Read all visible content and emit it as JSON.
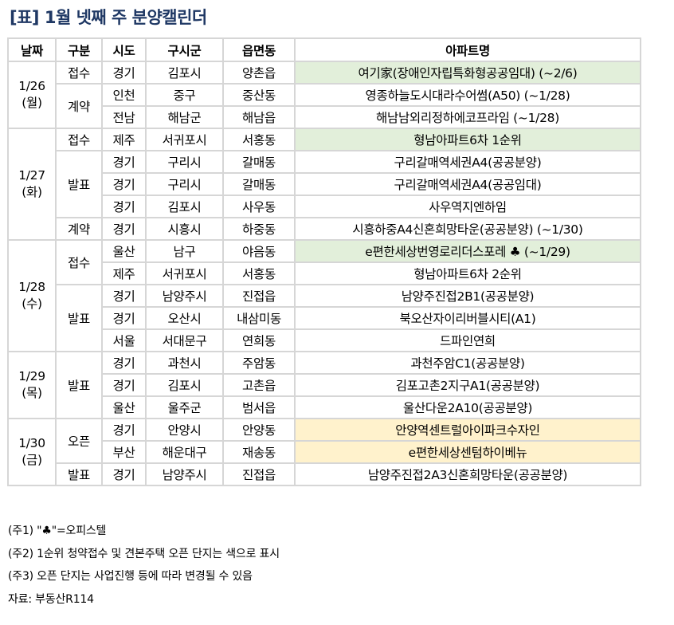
{
  "title": "[표] 1월 넷째 주 분양캘린더",
  "headers": [
    "날짜",
    "구분",
    "시도",
    "구시군",
    "읍면동",
    "아파트명"
  ],
  "colors": {
    "title": "#1f3864",
    "first_rank_highlight": "#e2efda",
    "open_highlight": "#fff2cc",
    "border": "#d6d6d6"
  },
  "days": [
    {
      "date": "1/26",
      "weekday": "(월)",
      "groups": [
        {
          "type": "접수",
          "rows": [
            {
              "sido": "경기",
              "sigungu": "김포시",
              "dong": "양촌읍",
              "name": "여기家(장애인자립특화형공공임대) (~2/6)",
              "highlight": "green"
            }
          ]
        },
        {
          "type": "계약",
          "rows": [
            {
              "sido": "인천",
              "sigungu": "중구",
              "dong": "중산동",
              "name": "영종하늘도시대라수어썸(A50) (~1/28)"
            },
            {
              "sido": "전남",
              "sigungu": "해남군",
              "dong": "해남읍",
              "name": "해남남외리정하에코프라임 (~1/28)"
            }
          ]
        }
      ]
    },
    {
      "date": "1/27",
      "weekday": "(화)",
      "groups": [
        {
          "type": "접수",
          "rows": [
            {
              "sido": "제주",
              "sigungu": "서귀포시",
              "dong": "서홍동",
              "name": "형남아파트6차 1순위",
              "highlight": "green"
            }
          ]
        },
        {
          "type": "발표",
          "rows": [
            {
              "sido": "경기",
              "sigungu": "구리시",
              "dong": "갈매동",
              "name": "구리갈매역세권A4(공공분양)"
            },
            {
              "sido": "경기",
              "sigungu": "구리시",
              "dong": "갈매동",
              "name": "구리갈매역세권A4(공공임대)"
            },
            {
              "sido": "경기",
              "sigungu": "김포시",
              "dong": "사우동",
              "name": "사우역지엔하임"
            }
          ]
        },
        {
          "type": "계약",
          "rows": [
            {
              "sido": "경기",
              "sigungu": "시흥시",
              "dong": "하중동",
              "name": "시흥하중A4신혼희망타운(공공분양) (~1/30)"
            }
          ]
        }
      ]
    },
    {
      "date": "1/28",
      "weekday": "(수)",
      "groups": [
        {
          "type": "접수",
          "rows": [
            {
              "sido": "울산",
              "sigungu": "남구",
              "dong": "야음동",
              "name": "e편한세상번영로리더스포레 ♣ (~1/29)",
              "highlight": "green"
            },
            {
              "sido": "제주",
              "sigungu": "서귀포시",
              "dong": "서홍동",
              "name": "형남아파트6차 2순위"
            }
          ]
        },
        {
          "type": "발표",
          "rows": [
            {
              "sido": "경기",
              "sigungu": "남양주시",
              "dong": "진접읍",
              "name": "남양주진접2B1(공공분양)"
            },
            {
              "sido": "경기",
              "sigungu": "오산시",
              "dong": "내삼미동",
              "name": "북오산자이리버블시티(A1)"
            },
            {
              "sido": "서울",
              "sigungu": "서대문구",
              "dong": "연희동",
              "name": "드파인연희"
            }
          ]
        }
      ]
    },
    {
      "date": "1/29",
      "weekday": "(목)",
      "groups": [
        {
          "type": "발표",
          "rows": [
            {
              "sido": "경기",
              "sigungu": "과천시",
              "dong": "주암동",
              "name": "과천주암C1(공공분양)"
            },
            {
              "sido": "경기",
              "sigungu": "김포시",
              "dong": "고촌읍",
              "name": "김포고촌2지구A1(공공분양)"
            },
            {
              "sido": "울산",
              "sigungu": "울주군",
              "dong": "범서읍",
              "name": "울산다운2A10(공공분양)"
            }
          ]
        }
      ]
    },
    {
      "date": "1/30",
      "weekday": "(금)",
      "groups": [
        {
          "type": "오픈",
          "rows": [
            {
              "sido": "경기",
              "sigungu": "안양시",
              "dong": "안양동",
              "name": "안양역센트럴아이파크수자인",
              "highlight": "orange"
            },
            {
              "sido": "부산",
              "sigungu": "해운대구",
              "dong": "재송동",
              "name": "e편한세상센텀하이베뉴",
              "highlight": "orange"
            }
          ]
        },
        {
          "type": "발표",
          "rows": [
            {
              "sido": "경기",
              "sigungu": "남양주시",
              "dong": "진접읍",
              "name": "남양주진접2A3신혼희망타운(공공분양)"
            }
          ]
        }
      ]
    }
  ],
  "notes": [
    "(주1) \"♣\"=오피스텔",
    "(주2) 1순위 청약접수 및 견본주택 오픈 단지는 색으로  표시",
    "(주3) 오픈 단지는 사업진행 등에 따라 변경될 수 있음",
    "자료: 부동산R114"
  ]
}
